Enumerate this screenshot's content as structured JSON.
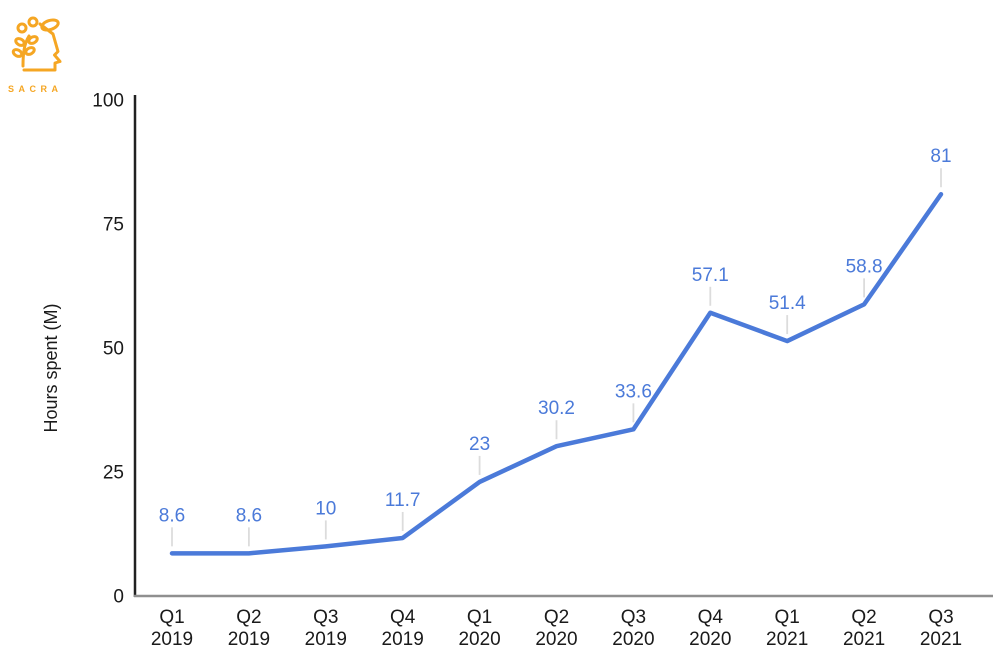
{
  "logo": {
    "brand": "SACRA",
    "color": "#F5A623"
  },
  "chart_data": {
    "type": "line",
    "categories": [
      "Q1 2019",
      "Q2 2019",
      "Q3 2019",
      "Q4 2019",
      "Q1 2020",
      "Q2 2020",
      "Q3 2020",
      "Q4 2020",
      "Q1 2021",
      "Q2 2021",
      "Q3 2021"
    ],
    "values": [
      8.6,
      8.6,
      10,
      11.7,
      23,
      30.2,
      33.6,
      57.1,
      51.4,
      58.8,
      81
    ],
    "display_labels": [
      "8.6",
      "8.6",
      "10",
      "11.7",
      "23",
      "30.2",
      "33.6",
      "57.1",
      "51.4",
      "58.8",
      "81"
    ],
    "title": "",
    "xlabel": "",
    "ylabel": "Hours spent (M)",
    "yticks": [
      0,
      25,
      50,
      75,
      100
    ],
    "ylim": [
      0,
      100
    ],
    "grid": false,
    "legend": "none",
    "colors": {
      "line": "#4b7ad9",
      "data_labels": "#4b7ad9",
      "y_axis": "#212121",
      "x_axis": "#8f8f8f",
      "tick_text": "#1a1a1a",
      "leader_line": "#dcdcdc"
    }
  }
}
